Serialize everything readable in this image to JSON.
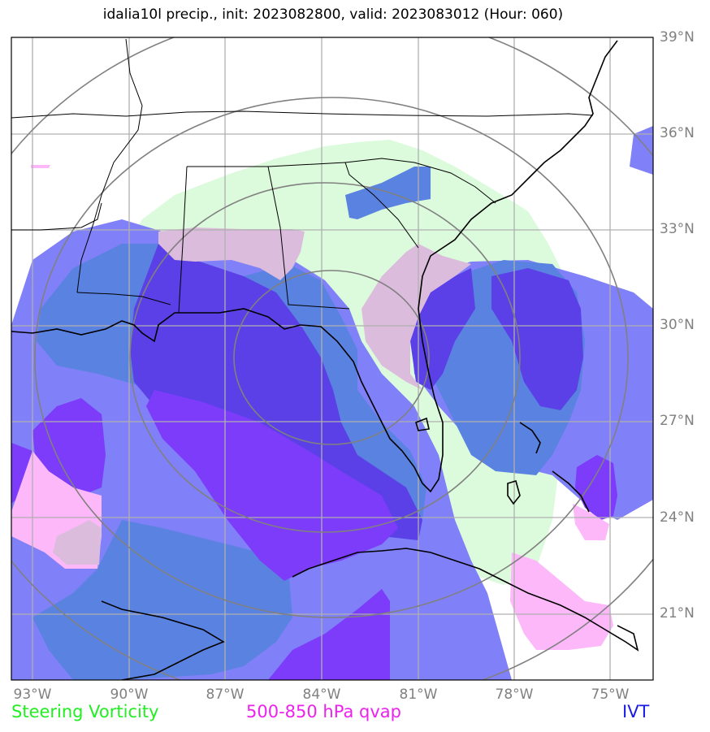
{
  "title": "idalia10l precip., init: 2023082800, valid: 2023083012 (Hour: 060)",
  "lat_labels": [
    "39°N",
    "36°N",
    "33°N",
    "30°N",
    "27°N",
    "24°N",
    "21°N"
  ],
  "lon_labels": [
    "93°W",
    "90°W",
    "87°W",
    "84°W",
    "81°W",
    "78°W",
    "75°W"
  ],
  "legend": {
    "steering": {
      "label": "Steering Vorticity",
      "color": "#22ee22"
    },
    "qvap": {
      "label": "500-850 hPa qvap",
      "color": "#ee22ee"
    },
    "ivt": {
      "label": "IVT",
      "color": "#1a1ae6"
    }
  },
  "colors": {
    "vorticity_fill": "#dcfadc",
    "qvap_fill": "#fcb8f8",
    "qvap_dark": "#dcbcdc",
    "ivt_light": "#8080f8",
    "ivt_mid": "#5a82e0",
    "ivt_dark": "#5a40e6",
    "ivt_purple": "#7c3cfa",
    "grid": "#b0b0b0",
    "range_rings": "#808080",
    "coast": "#000000"
  }
}
